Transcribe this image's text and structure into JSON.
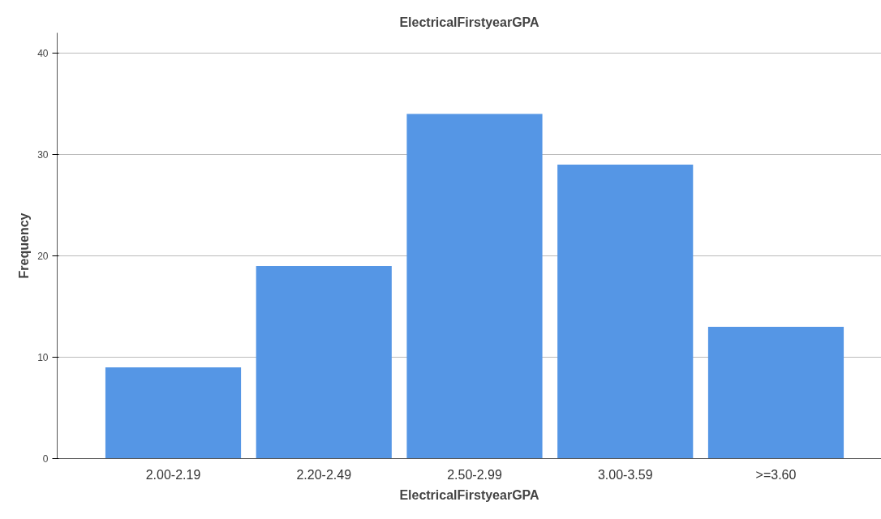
{
  "chart_data": {
    "type": "bar",
    "title": "ElectricalFirstyearGPA",
    "xlabel": "ElectricalFirstyearGPA",
    "ylabel": "Frequency",
    "categories": [
      "2.00-2.19",
      "2.20-2.49",
      "2.50-2.99",
      "3.00-3.59",
      ">=3.60"
    ],
    "values": [
      9,
      19,
      34,
      29,
      13
    ],
    "color": "#5596e5",
    "ylim": [
      0,
      42
    ],
    "yticks": [
      0,
      10,
      20,
      30,
      40
    ],
    "grid": "y"
  }
}
